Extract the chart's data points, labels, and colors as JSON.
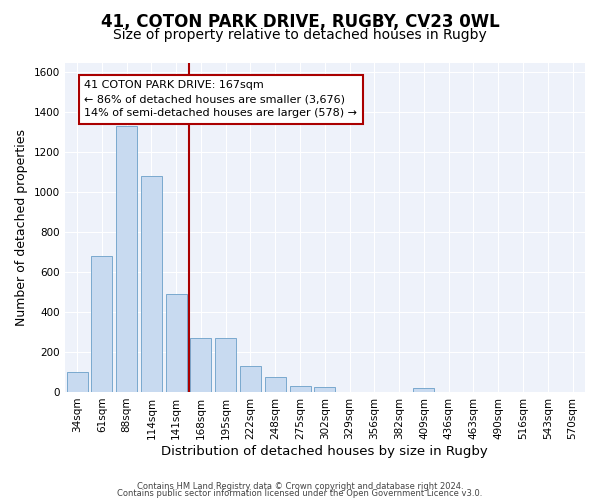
{
  "title_main": "41, COTON PARK DRIVE, RUGBY, CV23 0WL",
  "title_sub": "Size of property relative to detached houses in Rugby",
  "xlabel": "Distribution of detached houses by size in Rugby",
  "ylabel": "Number of detached properties",
  "categories": [
    "34sqm",
    "61sqm",
    "88sqm",
    "114sqm",
    "141sqm",
    "168sqm",
    "195sqm",
    "222sqm",
    "248sqm",
    "275sqm",
    "302sqm",
    "329sqm",
    "356sqm",
    "382sqm",
    "409sqm",
    "436sqm",
    "463sqm",
    "490sqm",
    "516sqm",
    "543sqm",
    "570sqm"
  ],
  "values": [
    100,
    680,
    1330,
    1080,
    490,
    270,
    270,
    130,
    75,
    30,
    25,
    0,
    0,
    0,
    20,
    0,
    0,
    0,
    0,
    0,
    0
  ],
  "bar_color": "#c8daf0",
  "bar_edge_color": "#6a9fc8",
  "highlight_color": "#aa0000",
  "annotation_line1": "41 COTON PARK DRIVE: 167sqm",
  "annotation_line2": "← 86% of detached houses are smaller (3,676)",
  "annotation_line3": "14% of semi-detached houses are larger (578) →",
  "footer_line1": "Contains HM Land Registry data © Crown copyright and database right 2024.",
  "footer_line2": "Contains public sector information licensed under the Open Government Licence v3.0.",
  "ylim": [
    0,
    1650
  ],
  "yticks": [
    0,
    200,
    400,
    600,
    800,
    1000,
    1200,
    1400,
    1600
  ],
  "background_color": "#eef2fa",
  "grid_color": "#ffffff",
  "title_fontsize": 12,
  "subtitle_fontsize": 10,
  "tick_fontsize": 7.5,
  "ylabel_fontsize": 9,
  "xlabel_fontsize": 9.5,
  "annotation_fontsize": 8,
  "footer_fontsize": 6
}
